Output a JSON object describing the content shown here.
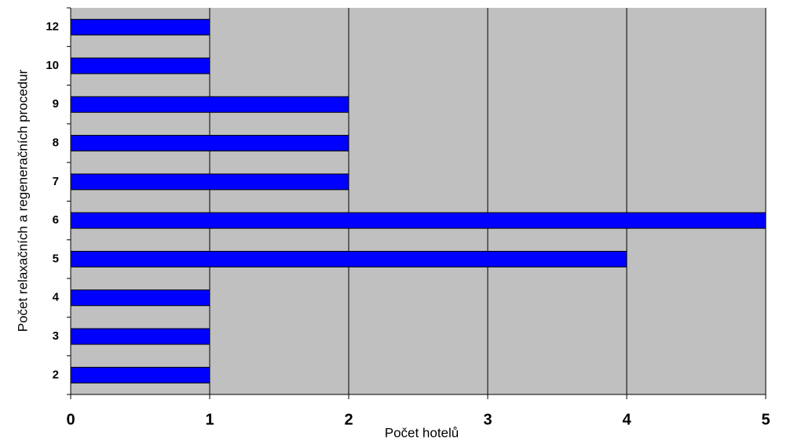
{
  "chart_data": {
    "type": "bar",
    "orientation": "horizontal",
    "x_label": "Počet hotelů",
    "y_label": "Počet relaxačních a regeneračních procedur",
    "categories": [
      "2",
      "3",
      "4",
      "5",
      "6",
      "7",
      "8",
      "9",
      "10",
      "12"
    ],
    "values": [
      1,
      1,
      1,
      4,
      5,
      2,
      2,
      2,
      1,
      1
    ],
    "color": "#0000ff",
    "xlim": [
      0,
      5
    ],
    "xticks": [
      0,
      1,
      2,
      3,
      4,
      5
    ],
    "grid": true
  }
}
